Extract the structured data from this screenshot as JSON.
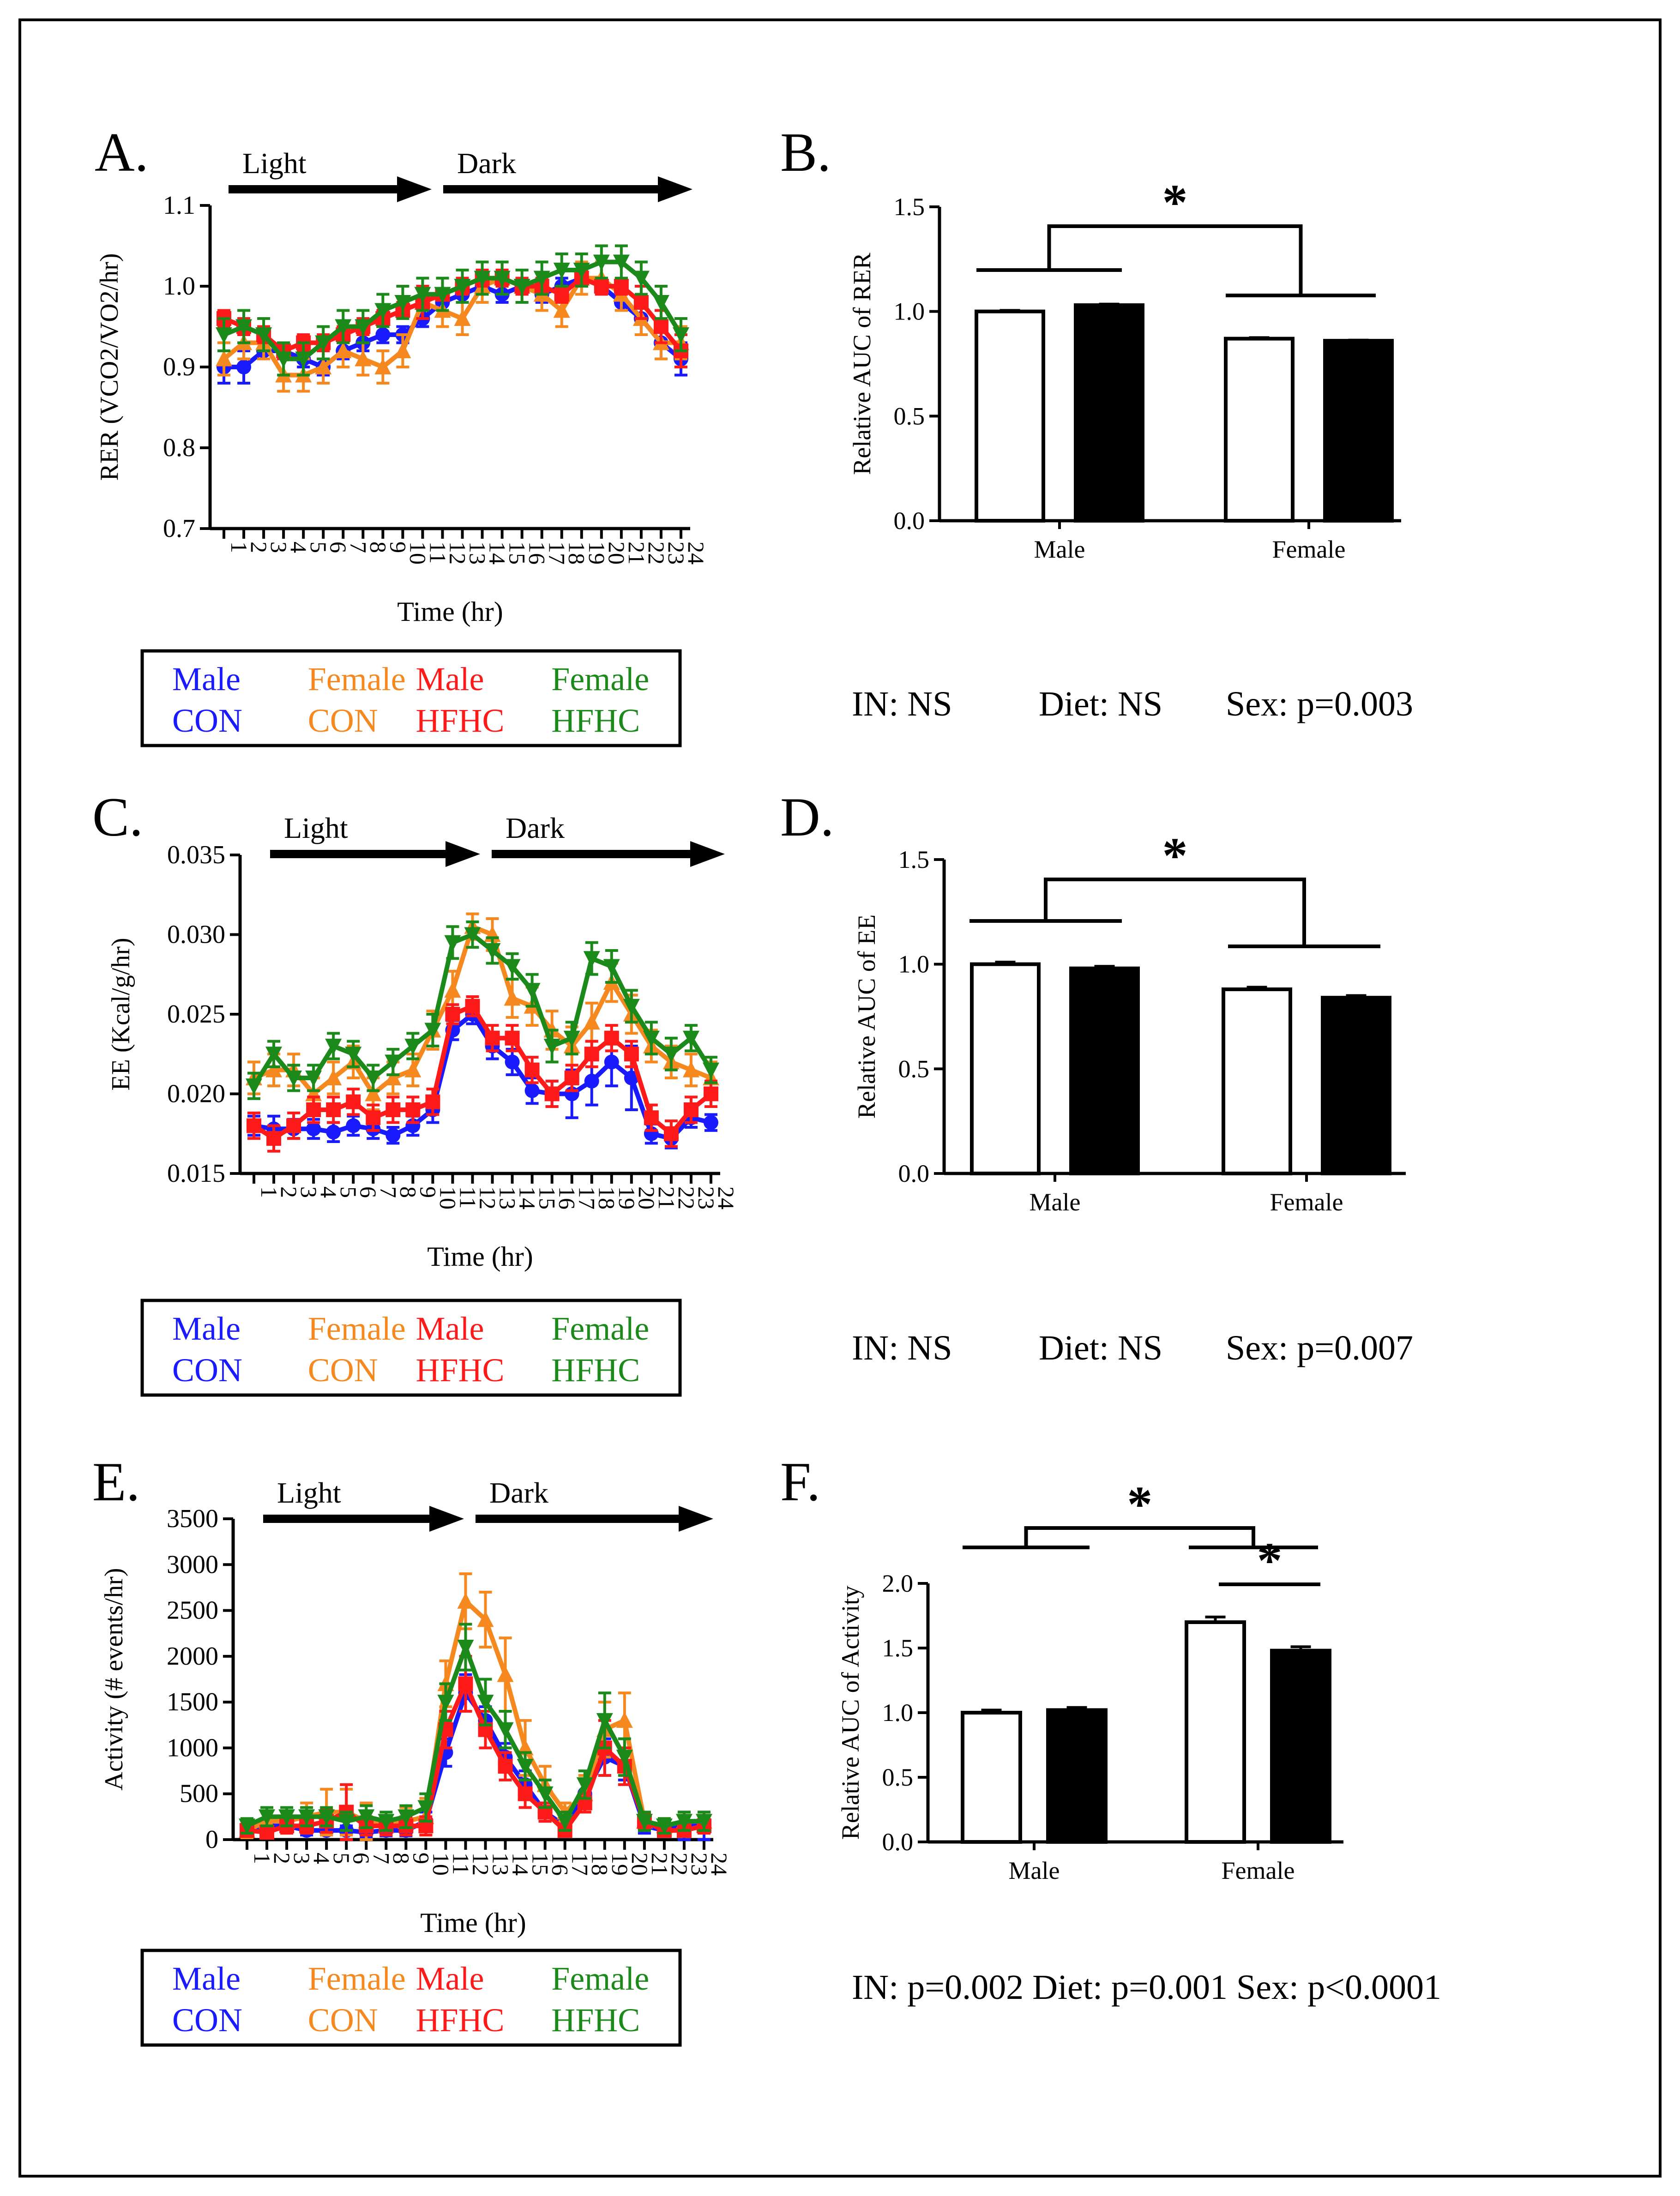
{
  "legend": {
    "rows": [
      [
        "Male",
        "Female",
        "Male",
        "Female"
      ],
      [
        "CON",
        "CON",
        "HFHC",
        "HFHC"
      ]
    ],
    "colors": [
      "#1a1aff",
      "#f5891f",
      "#ff1a1a",
      "#1b8a1b"
    ]
  },
  "chart_data": [
    {
      "panel": "A.",
      "type": "line",
      "xlabel": "Time (hr)",
      "ylabel": "RER (VCO2/VO2/hr)",
      "ylim": [
        0.7,
        1.1
      ],
      "yticks": [
        "0.7",
        "0.8",
        "0.9",
        "1.0",
        "1.1"
      ],
      "xticks": [
        "1",
        "2",
        "3",
        "4",
        "5",
        "6",
        "7",
        "8",
        "9",
        "10",
        "11",
        "12",
        "13",
        "14",
        "15",
        "16",
        "17",
        "18",
        "19",
        "20",
        "21",
        "22",
        "23",
        "24"
      ],
      "light_label": "Light",
      "dark_label": "Dark",
      "series": [
        {
          "name": "Male CON",
          "color": "#1a1aff",
          "marker": "circle",
          "values": [
            0.9,
            0.9,
            0.92,
            0.92,
            0.91,
            0.9,
            0.92,
            0.93,
            0.94,
            0.94,
            0.96,
            0.98,
            0.99,
            1.0,
            0.99,
            1.0,
            0.99,
            1.0,
            1.01,
            1.0,
            0.98,
            0.96,
            0.93,
            0.91
          ],
          "errors": [
            0.02,
            0.02,
            0.01,
            0.01,
            0.01,
            0.01,
            0.01,
            0.01,
            0.01,
            0.01,
            0.01,
            0.01,
            0.01,
            0.01,
            0.01,
            0.01,
            0.01,
            0.01,
            0.01,
            0.01,
            0.01,
            0.02,
            0.02,
            0.02
          ]
        },
        {
          "name": "Female CON",
          "color": "#f5891f",
          "marker": "triangle-up",
          "values": [
            0.91,
            0.93,
            0.93,
            0.89,
            0.89,
            0.9,
            0.92,
            0.91,
            0.9,
            0.92,
            0.98,
            0.97,
            0.96,
            1.0,
            1.01,
            1.0,
            0.99,
            0.97,
            1.01,
            1.01,
            0.99,
            0.96,
            0.93,
            0.93
          ],
          "errors": [
            0.02,
            0.02,
            0.02,
            0.02,
            0.02,
            0.02,
            0.02,
            0.02,
            0.02,
            0.02,
            0.02,
            0.02,
            0.02,
            0.02,
            0.02,
            0.02,
            0.02,
            0.02,
            0.02,
            0.02,
            0.02,
            0.02,
            0.02,
            0.02
          ]
        },
        {
          "name": "Male HFHC",
          "color": "#ff1a1a",
          "marker": "square",
          "values": [
            0.96,
            0.95,
            0.94,
            0.92,
            0.93,
            0.93,
            0.94,
            0.95,
            0.96,
            0.97,
            0.98,
            0.99,
            1.0,
            1.01,
            1.01,
            1.0,
            1.0,
            0.99,
            1.01,
            1.0,
            1.0,
            0.98,
            0.95,
            0.92
          ],
          "errors": [
            0.01,
            0.01,
            0.01,
            0.01,
            0.01,
            0.01,
            0.01,
            0.01,
            0.01,
            0.01,
            0.02,
            0.02,
            0.01,
            0.01,
            0.01,
            0.01,
            0.01,
            0.01,
            0.01,
            0.01,
            0.01,
            0.02,
            0.02,
            0.02
          ]
        },
        {
          "name": "Female HFHC",
          "color": "#1b8a1b",
          "marker": "triangle-down",
          "values": [
            0.94,
            0.95,
            0.94,
            0.91,
            0.91,
            0.93,
            0.95,
            0.95,
            0.97,
            0.98,
            0.99,
            0.99,
            1.0,
            1.01,
            1.01,
            1.0,
            1.01,
            1.02,
            1.02,
            1.03,
            1.03,
            1.01,
            0.98,
            0.94
          ],
          "errors": [
            0.02,
            0.02,
            0.02,
            0.02,
            0.02,
            0.02,
            0.02,
            0.02,
            0.02,
            0.02,
            0.02,
            0.02,
            0.02,
            0.02,
            0.02,
            0.02,
            0.02,
            0.02,
            0.02,
            0.02,
            0.02,
            0.02,
            0.02,
            0.02
          ]
        }
      ]
    },
    {
      "panel": "B.",
      "type": "bar",
      "ylabel": "Relative AUC of RER",
      "ylim": [
        0,
        1.5
      ],
      "yticks": [
        "0.0",
        "0.5",
        "1.0",
        "1.5"
      ],
      "categories": [
        "Male",
        "Female"
      ],
      "series": [
        {
          "name": "CON",
          "fill": "#ffffff",
          "values": [
            1.0,
            0.87
          ],
          "errors": [
            0.005,
            0.005
          ]
        },
        {
          "name": "HFHC",
          "fill": "#000000",
          "values": [
            1.03,
            0.86
          ],
          "errors": [
            0.005,
            0.003
          ]
        }
      ],
      "significance": [
        {
          "label": "*",
          "between": [
            "Male",
            "Female"
          ]
        }
      ],
      "stats": {
        "in": "IN: NS",
        "diet": "Diet: NS",
        "sex": "Sex: p=0.003"
      }
    },
    {
      "panel": "C.",
      "type": "line",
      "xlabel": "Time (hr)",
      "ylabel": "EE (Kcal/g/hr)",
      "ylim": [
        0.015,
        0.035
      ],
      "yticks": [
        "0.015",
        "0.020",
        "0.025",
        "0.030",
        "0.035"
      ],
      "xticks": [
        "1",
        "2",
        "3",
        "4",
        "5",
        "6",
        "7",
        "8",
        "9",
        "10",
        "11",
        "12",
        "13",
        "14",
        "15",
        "16",
        "17",
        "18",
        "19",
        "20",
        "21",
        "22",
        "23",
        "24"
      ],
      "light_label": "Light",
      "dark_label": "Dark",
      "series": [
        {
          "name": "Male CON",
          "color": "#1a1aff",
          "marker": "circle",
          "values": [
            0.018,
            0.0178,
            0.0178,
            0.0178,
            0.0176,
            0.018,
            0.0178,
            0.0174,
            0.018,
            0.019,
            0.024,
            0.025,
            0.023,
            0.022,
            0.0202,
            0.02,
            0.02,
            0.0208,
            0.022,
            0.021,
            0.0175,
            0.0172,
            0.0185,
            0.0182
          ],
          "errors": [
            0.0006,
            0.0008,
            0.0006,
            0.0006,
            0.0006,
            0.0006,
            0.0006,
            0.0005,
            0.0006,
            0.0008,
            0.0006,
            0.0006,
            0.0008,
            0.0008,
            0.0008,
            0.0008,
            0.0015,
            0.0015,
            0.0015,
            0.002,
            0.0006,
            0.0006,
            0.0006,
            0.0005
          ]
        },
        {
          "name": "Female CON",
          "color": "#f5891f",
          "marker": "triangle-up",
          "values": [
            0.021,
            0.0215,
            0.0215,
            0.02,
            0.021,
            0.022,
            0.02,
            0.021,
            0.0215,
            0.024,
            0.0265,
            0.0305,
            0.03,
            0.026,
            0.0255,
            0.024,
            0.023,
            0.0245,
            0.027,
            0.025,
            0.023,
            0.022,
            0.0215,
            0.021
          ],
          "errors": [
            0.001,
            0.001,
            0.001,
            0.001,
            0.001,
            0.001,
            0.001,
            0.001,
            0.001,
            0.0012,
            0.0012,
            0.0008,
            0.001,
            0.0012,
            0.0012,
            0.0012,
            0.0012,
            0.0012,
            0.0012,
            0.0012,
            0.001,
            0.001,
            0.001,
            0.001
          ]
        },
        {
          "name": "Male HFHC",
          "color": "#ff1a1a",
          "marker": "square",
          "values": [
            0.018,
            0.0172,
            0.018,
            0.019,
            0.019,
            0.0195,
            0.0185,
            0.019,
            0.019,
            0.0195,
            0.025,
            0.0255,
            0.0235,
            0.0235,
            0.0215,
            0.02,
            0.021,
            0.0225,
            0.0235,
            0.0225,
            0.0185,
            0.0175,
            0.019,
            0.02
          ],
          "errors": [
            0.0008,
            0.0008,
            0.0008,
            0.0008,
            0.0008,
            0.0008,
            0.0008,
            0.0008,
            0.0008,
            0.0008,
            0.0006,
            0.0006,
            0.0008,
            0.0008,
            0.0008,
            0.0008,
            0.0008,
            0.0008,
            0.0008,
            0.0008,
            0.0008,
            0.0008,
            0.0008,
            0.0008
          ]
        },
        {
          "name": "Female HFHC",
          "color": "#1b8a1b",
          "marker": "triangle-down",
          "values": [
            0.0205,
            0.0225,
            0.021,
            0.021,
            0.023,
            0.0225,
            0.021,
            0.022,
            0.023,
            0.024,
            0.0295,
            0.03,
            0.029,
            0.028,
            0.0265,
            0.023,
            0.0235,
            0.0285,
            0.028,
            0.0255,
            0.0235,
            0.0225,
            0.0235,
            0.0215
          ],
          "errors": [
            0.0008,
            0.0008,
            0.0008,
            0.0008,
            0.0008,
            0.0008,
            0.0008,
            0.0008,
            0.0008,
            0.001,
            0.001,
            0.0008,
            0.0008,
            0.0008,
            0.001,
            0.001,
            0.001,
            0.001,
            0.001,
            0.001,
            0.001,
            0.001,
            0.0008,
            0.0008
          ]
        }
      ]
    },
    {
      "panel": "D.",
      "type": "bar",
      "ylabel": "Relative AUC of EE",
      "ylim": [
        0,
        1.5
      ],
      "yticks": [
        "0.0",
        "0.5",
        "1.0",
        "1.5"
      ],
      "categories": [
        "Male",
        "Female"
      ],
      "series": [
        {
          "name": "CON",
          "fill": "#ffffff",
          "values": [
            1.0,
            0.88
          ],
          "errors": [
            0.01,
            0.01
          ]
        },
        {
          "name": "HFHC",
          "fill": "#000000",
          "values": [
            0.98,
            0.84
          ],
          "errors": [
            0.01,
            0.01
          ]
        }
      ],
      "significance": [
        {
          "label": "*",
          "between": [
            "Male",
            "Female"
          ]
        }
      ],
      "stats": {
        "in": "IN: NS",
        "diet": "Diet: NS",
        "sex": "Sex: p=0.007"
      }
    },
    {
      "panel": "E.",
      "type": "line",
      "xlabel": "Time (hr)",
      "ylabel": "Activity (# events/hr)",
      "ylim": [
        0,
        3500
      ],
      "yticks": [
        "0",
        "500",
        "1000",
        "1500",
        "2000",
        "2500",
        "3000",
        "3500"
      ],
      "xticks": [
        "1",
        "2",
        "3",
        "4",
        "5",
        "6",
        "7",
        "8",
        "9",
        "10",
        "11",
        "12",
        "13",
        "14",
        "15",
        "16",
        "17",
        "18",
        "19",
        "20",
        "21",
        "22",
        "23",
        "24"
      ],
      "light_label": "Light",
      "dark_label": "Dark",
      "series": [
        {
          "name": "Male CON",
          "color": "#1a1aff",
          "marker": "circle",
          "values": [
            100,
            150,
            150,
            100,
            100,
            100,
            80,
            100,
            100,
            200,
            950,
            1600,
            1300,
            900,
            600,
            300,
            150,
            500,
            900,
            800,
            150,
            100,
            150,
            150
          ],
          "errors": [
            50,
            60,
            60,
            50,
            50,
            50,
            50,
            60,
            60,
            100,
            150,
            200,
            150,
            150,
            150,
            100,
            80,
            150,
            200,
            150,
            80,
            50,
            150,
            150
          ]
        },
        {
          "name": "Female CON",
          "color": "#f5891f",
          "marker": "triangle-up",
          "values": [
            100,
            200,
            200,
            250,
            300,
            300,
            200,
            150,
            200,
            250,
            1700,
            2600,
            2400,
            1800,
            1000,
            600,
            300,
            500,
            1200,
            1300,
            200,
            150,
            200,
            200
          ],
          "errors": [
            80,
            100,
            100,
            150,
            250,
            250,
            200,
            100,
            150,
            200,
            250,
            300,
            300,
            400,
            300,
            200,
            100,
            200,
            300,
            300,
            100,
            80,
            100,
            100
          ]
        },
        {
          "name": "Male HFHC",
          "color": "#ff1a1a",
          "marker": "square",
          "values": [
            100,
            80,
            150,
            150,
            200,
            300,
            150,
            150,
            150,
            150,
            1200,
            1700,
            1200,
            800,
            500,
            300,
            100,
            400,
            1000,
            800,
            200,
            100,
            100,
            150
          ],
          "errors": [
            60,
            60,
            80,
            80,
            120,
            300,
            100,
            100,
            100,
            100,
            200,
            300,
            200,
            150,
            150,
            100,
            60,
            100,
            300,
            200,
            80,
            60,
            60,
            80
          ]
        },
        {
          "name": "Female HFHC",
          "color": "#1b8a1b",
          "marker": "triangle-down",
          "values": [
            150,
            250,
            250,
            250,
            250,
            200,
            250,
            200,
            250,
            350,
            1500,
            2100,
            1500,
            1200,
            800,
            500,
            200,
            600,
            1300,
            900,
            200,
            150,
            200,
            200
          ],
          "errors": [
            80,
            100,
            100,
            100,
            100,
            100,
            120,
            100,
            120,
            150,
            200,
            250,
            250,
            200,
            150,
            150,
            100,
            150,
            300,
            200,
            100,
            80,
            100,
            100
          ]
        }
      ]
    },
    {
      "panel": "F.",
      "type": "bar",
      "ylabel": "Relative AUC of Activity",
      "ylim": [
        0,
        2.0
      ],
      "yticks": [
        "0.0",
        "0.5",
        "1.0",
        "1.5",
        "2.0"
      ],
      "categories": [
        "Male",
        "Female"
      ],
      "series": [
        {
          "name": "CON",
          "fill": "#ffffff",
          "values": [
            1.0,
            1.7
          ],
          "errors": [
            0.02,
            0.04
          ]
        },
        {
          "name": "HFHC",
          "fill": "#000000",
          "values": [
            1.02,
            1.48
          ],
          "errors": [
            0.02,
            0.03
          ]
        }
      ],
      "significance": [
        {
          "label": "*",
          "between": [
            "Male",
            "Female"
          ]
        },
        {
          "label": "*",
          "between": [
            "Female CON",
            "Female HFHC"
          ]
        }
      ],
      "stats": {
        "all": "IN: p=0.002   Diet: p=0.001 Sex: p<0.0001"
      }
    }
  ]
}
